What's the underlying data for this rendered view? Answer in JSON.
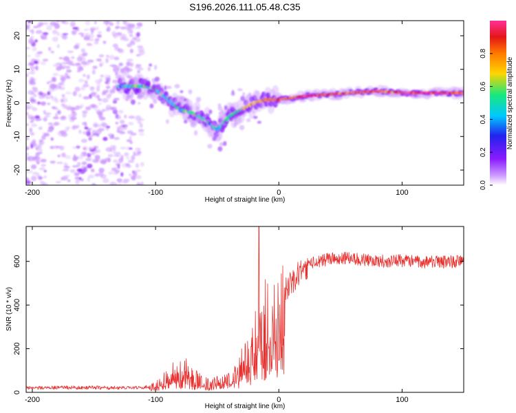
{
  "title": "S196.2026.111.05.48.C35",
  "colors": {
    "snr_line": "#e8302e",
    "colormap": [
      "#cc99ff",
      "#8a1cff",
      "#2222ee",
      "#00c8ff",
      "#19e87a",
      "#ffd400",
      "#ff7a00",
      "#e51616",
      "#ff2f9a"
    ]
  },
  "chart_data": [
    {
      "type": "heatmap",
      "xlabel": "Height of straight line (km)",
      "ylabel": "Frequency (Hz)",
      "xlim": [
        -205,
        150
      ],
      "ylim": [
        -24.5,
        24.5
      ],
      "xticks": [
        -200,
        -100,
        0,
        100
      ],
      "yticks": [
        -20,
        -10,
        0,
        10,
        20
      ],
      "xtick_labels": [
        "-200",
        "-100",
        "0",
        "100"
      ],
      "ytick_labels": [
        "-20",
        "-10",
        "0",
        "10",
        "20"
      ],
      "colorbar": {
        "label": "Normalized spectral amplitude",
        "range": [
          0,
          1
        ],
        "ticks": [
          0.0,
          0.2,
          0.4,
          0.6,
          0.8
        ],
        "tick_labels": [
          "0.0",
          "0.2",
          "0.4",
          "0.6",
          "0.8"
        ]
      },
      "ridge": {
        "x": [
          -130,
          -110,
          -100,
          -90,
          -80,
          -70,
          -60,
          -50,
          -40,
          -30,
          -20,
          -10,
          0,
          20,
          40,
          60,
          80,
          100,
          120,
          150
        ],
        "y": [
          5,
          5,
          4,
          1,
          -2,
          -3,
          -5,
          -8,
          -4,
          -2,
          0,
          1,
          1,
          2,
          2.5,
          3,
          3.5,
          3,
          3,
          3
        ],
        "peak_amplitude_x": [
          -40,
          0,
          20,
          40,
          60,
          80,
          90,
          100,
          120,
          140
        ],
        "peak_amplitude": [
          0.5,
          0.85,
          0.95,
          0.9,
          0.8,
          0.9,
          0.8,
          0.95,
          0.95,
          0.9
        ]
      },
      "noise_region_x": [
        -205,
        -110
      ]
    },
    {
      "type": "line",
      "xlabel": "Height of straight line (km)",
      "ylabel": "SNR (10 * v/v)",
      "xlim": [
        -205,
        150
      ],
      "ylim": [
        0,
        760
      ],
      "xticks": [
        -200,
        -100,
        0,
        100
      ],
      "yticks": [
        0,
        200,
        400,
        600
      ],
      "xtick_labels": [
        "-200",
        "-100",
        "0",
        "100"
      ],
      "ytick_labels": [
        "0",
        "200",
        "400",
        "600"
      ],
      "series": [
        {
          "name": "SNR",
          "x": [
            -205,
            -180,
            -150,
            -120,
            -105,
            -95,
            -85,
            -75,
            -65,
            -55,
            -45,
            -35,
            -28,
            -22,
            -18,
            -14,
            -10,
            -5,
            0,
            5,
            10,
            15,
            20,
            30,
            40,
            60,
            80,
            100,
            120,
            150
          ],
          "y": [
            20,
            22,
            22,
            20,
            25,
            50,
            95,
            110,
            60,
            45,
            60,
            85,
            150,
            200,
            280,
            380,
            350,
            380,
            420,
            460,
            500,
            540,
            570,
            600,
            610,
            615,
            600,
            605,
            595,
            600
          ],
          "peak": {
            "x": -16,
            "y": 760
          }
        }
      ]
    }
  ]
}
